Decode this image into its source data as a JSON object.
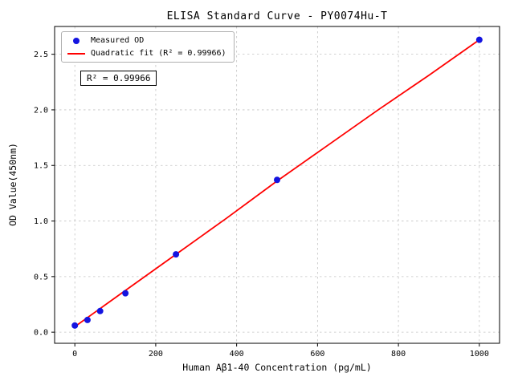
{
  "chart_data": {
    "type": "scatter",
    "title": "ELISA Standard Curve - PY0074Hu-T",
    "xlabel": "Human Aβ1-40 Concentration (pg/mL)",
    "ylabel": "OD Value(450nm)",
    "xlim": [
      -50,
      1050
    ],
    "ylim": [
      -0.1,
      2.75
    ],
    "grid": "dashed",
    "legend_position": "upper left",
    "annotation": "R² = 0.99966",
    "xticks": {
      "values": [
        0,
        200,
        400,
        600,
        800,
        1000
      ],
      "labels": [
        "0",
        "200",
        "400",
        "600",
        "800",
        "1000"
      ]
    },
    "yticks": {
      "values": [
        0,
        0.5,
        1.0,
        1.5,
        2.0,
        2.5
      ],
      "labels": [
        "0.0",
        "0.5",
        "1.0",
        "1.5",
        "2.0",
        "2.5"
      ]
    },
    "series": [
      {
        "name": "Measured OD",
        "type": "scatter",
        "color": "#1414e0",
        "x": [
          0,
          31.25,
          62.5,
          125,
          250,
          500,
          1000
        ],
        "y": [
          0.06,
          0.11,
          0.19,
          0.35,
          0.7,
          1.37,
          2.63
        ]
      },
      {
        "name": "Quadratic fit (R² = 0.99966)",
        "type": "line",
        "color": "#ff0000",
        "x": [
          0,
          125,
          250,
          375,
          500,
          625,
          750,
          875,
          1000
        ],
        "y": [
          0.05,
          0.375,
          0.7,
          1.025,
          1.36,
          1.68,
          2.0,
          2.31,
          2.63
        ]
      }
    ],
    "colors": {
      "grid": "#c4c4c4",
      "axis": "#000000",
      "background": "#ffffff"
    }
  }
}
